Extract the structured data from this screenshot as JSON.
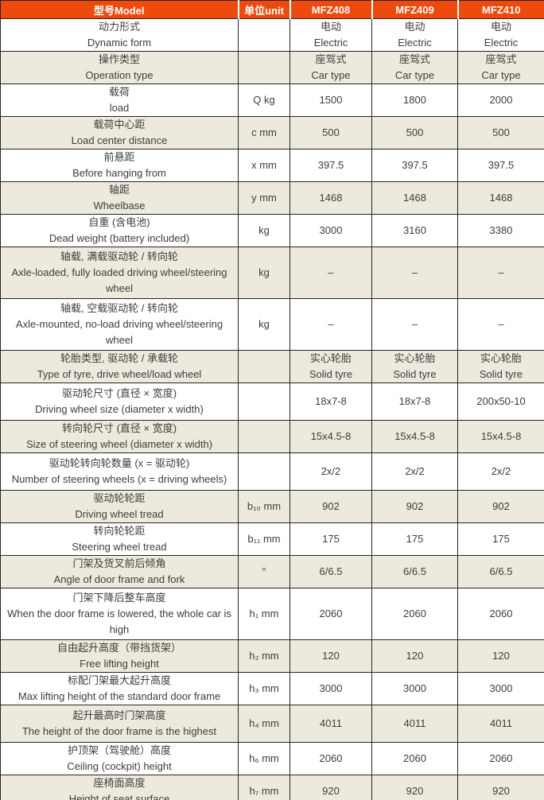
{
  "colors": {
    "header_bg": "#ee4a0e",
    "header_text": "#ffffff",
    "row_alt_bg": "#ede9dc",
    "row_bg": "#ffffff",
    "text": "#3d3d3d",
    "border": "#262626"
  },
  "header": {
    "model": "型号Model",
    "unit": "单位unit",
    "columns": [
      "MFZ408",
      "MFZ409",
      "MFZ410"
    ]
  },
  "rows": [
    {
      "name_zh": "动力形式",
      "name_en": "Dynamic form",
      "unit": "",
      "values": [
        {
          "zh": "电动",
          "en": "Electric"
        },
        {
          "zh": "电动",
          "en": "Electric"
        },
        {
          "zh": "电动",
          "en": "Electric"
        }
      ]
    },
    {
      "name_zh": "操作类型",
      "name_en": "Operation type",
      "unit": "",
      "values": [
        {
          "zh": "座驾式",
          "en": "Car type"
        },
        {
          "zh": "座驾式",
          "en": "Car type"
        },
        {
          "zh": "座驾式",
          "en": "Car type"
        }
      ]
    },
    {
      "name_zh": "载荷",
      "name_en": "load",
      "unit": "Q  kg",
      "values": [
        "1500",
        "1800",
        "2000"
      ]
    },
    {
      "name_zh": "载荷中心距",
      "name_en": "Load center distance",
      "unit": "c  mm",
      "values": [
        "500",
        "500",
        "500"
      ]
    },
    {
      "name_zh": "前悬距",
      "name_en": "Before hanging from",
      "unit": "x  mm",
      "values": [
        "397.5",
        "397.5",
        "397.5"
      ]
    },
    {
      "name_zh": "轴距",
      "name_en": "Wheelbase",
      "unit": "y  mm",
      "values": [
        "1468",
        "1468",
        "1468"
      ]
    },
    {
      "name_zh": "自重 (含电池)",
      "name_en": "Dead weight (battery included)",
      "unit": "kg",
      "values": [
        "3000",
        "3160",
        "3380"
      ]
    },
    {
      "name_zh": "轴载, 满载驱动轮 / 转向轮",
      "name_en": "Axle-loaded, fully loaded driving wheel/steering wheel",
      "unit": "kg",
      "values": [
        "–",
        "–",
        "–"
      ]
    },
    {
      "name_zh": "轴载, 空载驱动轮 / 转向轮",
      "name_en": "Axle-mounted, no-load driving wheel/steering wheel",
      "unit": "kg",
      "values": [
        "–",
        "–",
        "–"
      ]
    },
    {
      "name_zh": "轮胎类型, 驱动轮 / 承载轮",
      "name_en": "Type of tyre, drive wheel/load wheel",
      "unit": "",
      "values": [
        {
          "zh": "实心轮胎",
          "en": "Solid tyre"
        },
        {
          "zh": "实心轮胎",
          "en": "Solid tyre"
        },
        {
          "zh": "实心轮胎",
          "en": "Solid tyre"
        }
      ]
    },
    {
      "name_zh": "驱动轮尺寸 (直径 × 宽度)",
      "name_en": "Driving wheel size (diameter x width)",
      "unit": "",
      "values": [
        "18x7-8",
        "18x7-8",
        "200x50-10"
      ]
    },
    {
      "name_zh": "转向轮尺寸 (直径 × 宽度)",
      "name_en": "Size of steering wheel (diameter x width)",
      "unit": "",
      "values": [
        "15x4.5-8",
        "15x4.5-8",
        "15x4.5-8"
      ]
    },
    {
      "name_zh": "驱动轮转向轮数量 (x = 驱动轮)",
      "name_en": "Number of steering wheels (x = driving wheels)",
      "unit": "",
      "values": [
        "2x/2",
        "2x/2",
        "2x/2"
      ]
    },
    {
      "name_zh": "驱动轮轮距",
      "name_en": "Driving wheel tread",
      "unit": "b₁₀ mm",
      "values": [
        "902",
        "902",
        "902"
      ]
    },
    {
      "name_zh": "转向轮轮距",
      "name_en": "Steering wheel tread",
      "unit": "b₁₁  mm",
      "values": [
        "175",
        "175",
        "175"
      ]
    },
    {
      "name_zh": "门架及货叉前后倾角",
      "name_en": "Angle of door frame and fork",
      "unit": "°",
      "values": [
        "6/6.5",
        "6/6.5",
        "6/6.5"
      ]
    },
    {
      "name_zh": "门架下降后整车高度",
      "name_en": "When the door frame is lowered, the whole car is high",
      "unit": "h₁  mm",
      "values": [
        "2060",
        "2060",
        "2060"
      ]
    },
    {
      "name_zh": "自由起升高度（带挡货架）",
      "name_en": "Free lifting height",
      "unit": "h₂  mm",
      "values": [
        "120",
        "120",
        "120"
      ]
    },
    {
      "name_zh": "标配门架最大起升高度",
      "name_en": "Max lifting height of the standard door frame",
      "unit": "h₃  mm",
      "values": [
        "3000",
        "3000",
        "3000"
      ]
    },
    {
      "name_zh": "起升最高时门架高度",
      "name_en": "The height of the door frame is the highest",
      "unit": "h₄  mm",
      "values": [
        "4011",
        "4011",
        "4011"
      ]
    },
    {
      "name_zh": "护顶架（驾驶舱）高度",
      "name_en": "Ceiling (cockpit) height",
      "unit": "h₆  mm",
      "values": [
        "2060",
        "2060",
        "2060"
      ]
    },
    {
      "name_zh": "座椅面高度",
      "name_en": "Height of seat surface",
      "unit": "h₇  mm",
      "values": [
        "920",
        "920",
        "920"
      ]
    }
  ]
}
